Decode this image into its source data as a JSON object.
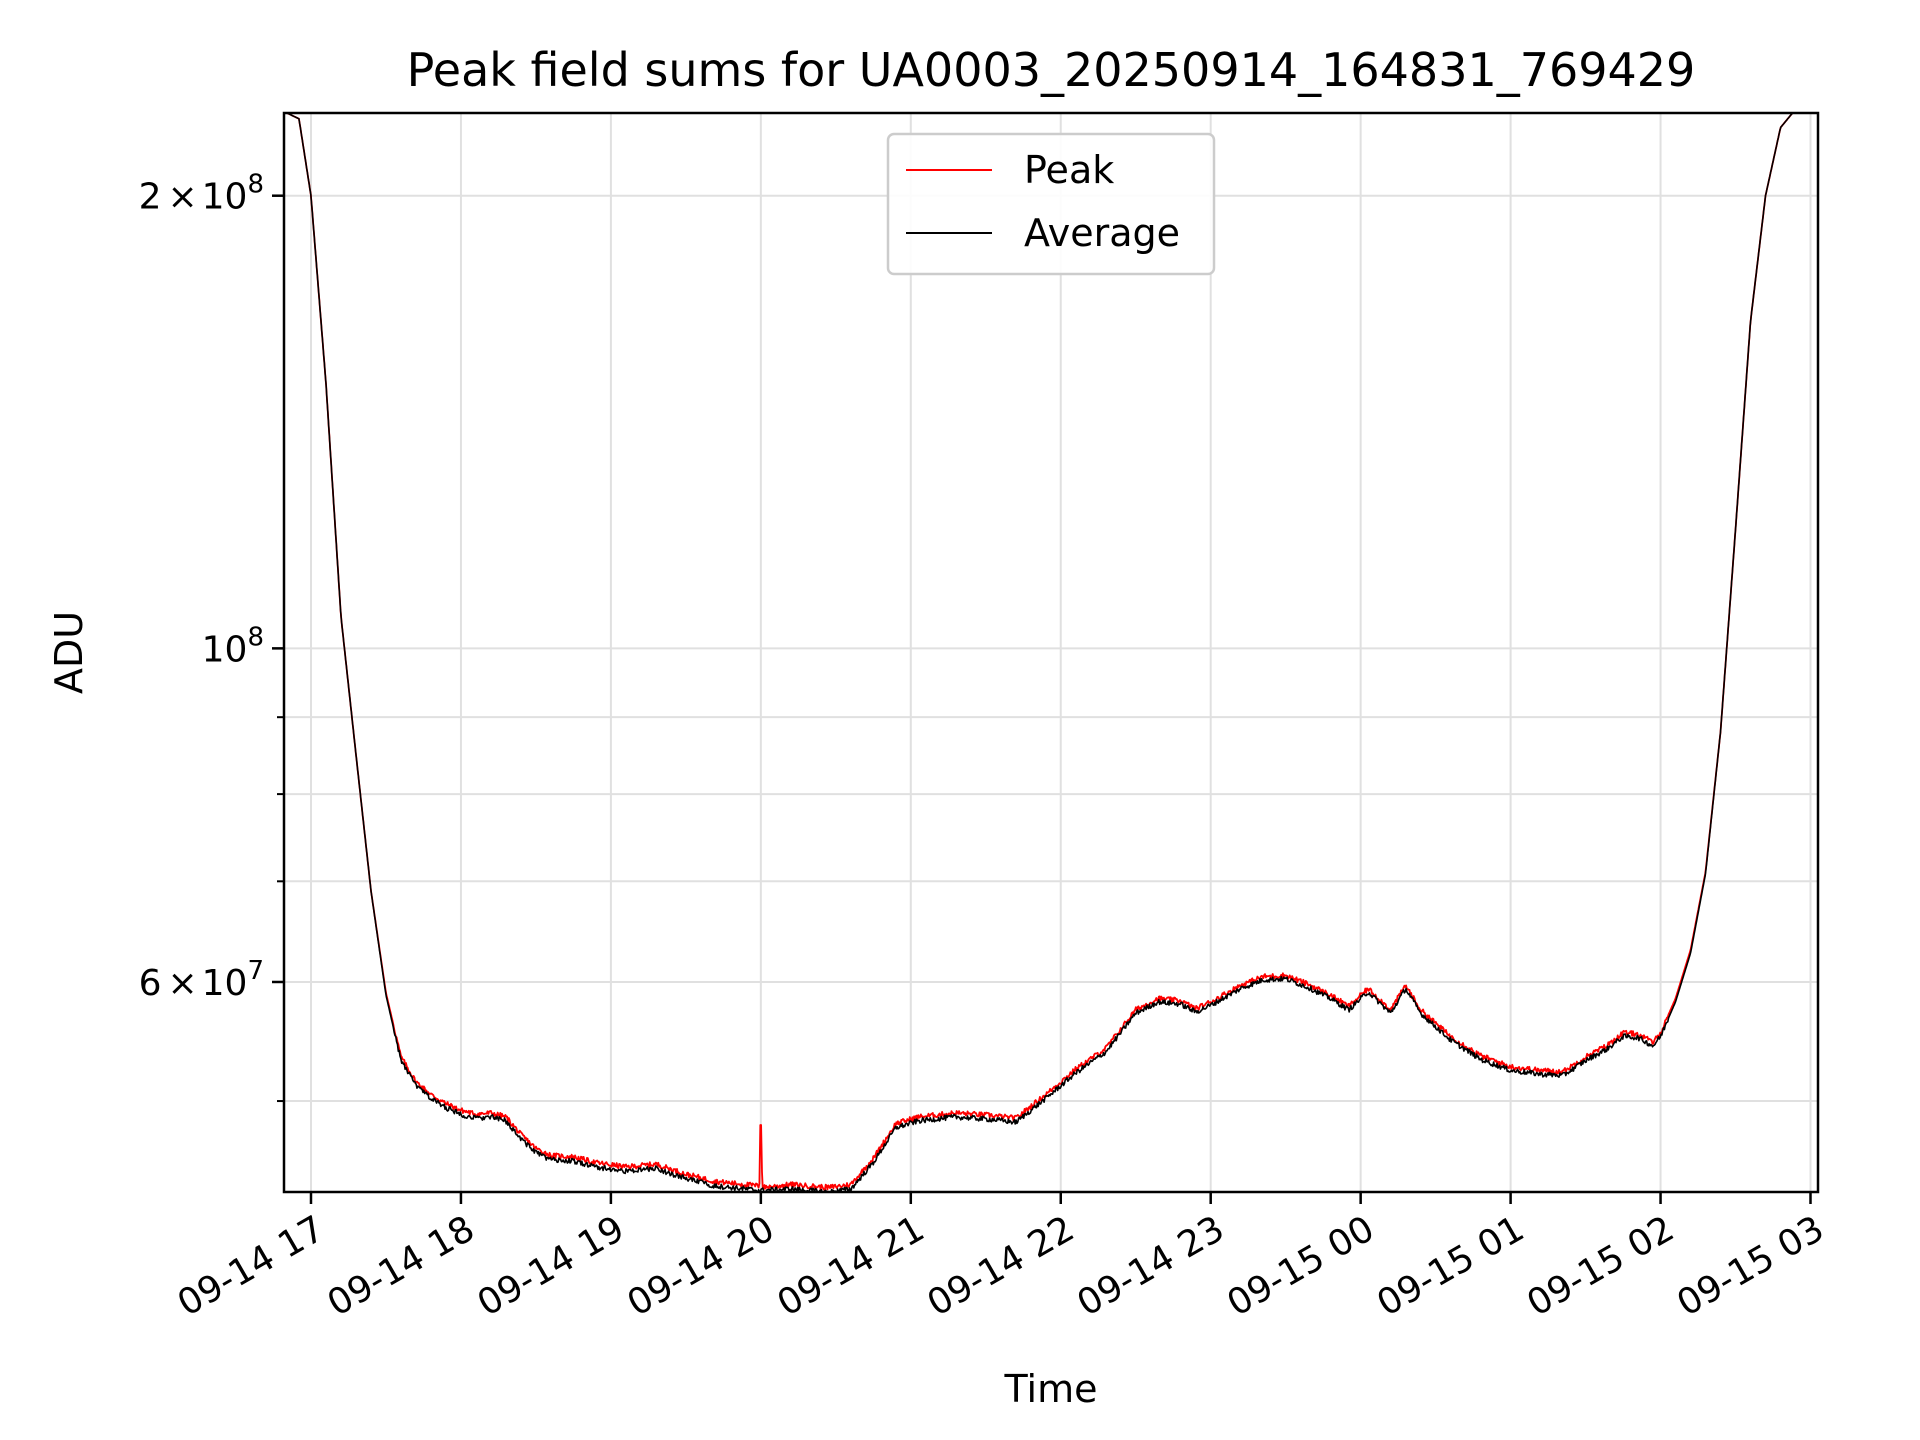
{
  "chart_data": {
    "type": "line",
    "title": "Peak field sums for UA0003_20250914_164831_769429",
    "xlabel": "Time",
    "ylabel": "ADU",
    "yscale": "log",
    "ylim": [
      43500000,
      227000000
    ],
    "xlim_hours": [
      16.82,
      27.05
    ],
    "grid": true,
    "legend_position": "upper center",
    "x_ticks": [
      {
        "label": "09-14 17",
        "hour": 17
      },
      {
        "label": "09-14 18",
        "hour": 18
      },
      {
        "label": "09-14 19",
        "hour": 19
      },
      {
        "label": "09-14 20",
        "hour": 20
      },
      {
        "label": "09-14 21",
        "hour": 21
      },
      {
        "label": "09-14 22",
        "hour": 22
      },
      {
        "label": "09-14 23",
        "hour": 23
      },
      {
        "label": "09-15 00",
        "hour": 24
      },
      {
        "label": "09-15 01",
        "hour": 25
      },
      {
        "label": "09-15 02",
        "hour": 26
      },
      {
        "label": "09-15 03",
        "hour": 27
      }
    ],
    "y_major_ticks": [
      {
        "label_mant": "2",
        "label_exp": "8",
        "value": 200000000,
        "style": "mantissa"
      },
      {
        "label_mant": "10",
        "label_exp": "8",
        "value": 100000000,
        "style": "power"
      },
      {
        "label_mant": "6",
        "label_exp": "7",
        "value": 60000000,
        "style": "mantissa"
      }
    ],
    "y_minor_ticks": [
      50000000,
      70000000,
      80000000,
      90000000
    ],
    "times_symbol": "×",
    "series": [
      {
        "name": "Peak",
        "color": "#ff0000",
        "points": [
          [
            16.84,
            227000000
          ],
          [
            16.92,
            225000000
          ],
          [
            17.0,
            200000000
          ],
          [
            17.1,
            150000000
          ],
          [
            17.2,
            105000000
          ],
          [
            17.3,
            85000000
          ],
          [
            17.4,
            69000000
          ],
          [
            17.5,
            59000000
          ],
          [
            17.6,
            53500000
          ],
          [
            17.7,
            51500000
          ],
          [
            17.8,
            50500000
          ],
          [
            17.9,
            49800000
          ],
          [
            18.0,
            49300000
          ],
          [
            18.1,
            49000000
          ],
          [
            18.2,
            49100000
          ],
          [
            18.3,
            48800000
          ],
          [
            18.4,
            47500000
          ],
          [
            18.5,
            46500000
          ],
          [
            18.6,
            46000000
          ],
          [
            18.75,
            45900000
          ],
          [
            18.9,
            45500000
          ],
          [
            19.1,
            45200000
          ],
          [
            19.3,
            45400000
          ],
          [
            19.5,
            44700000
          ],
          [
            19.7,
            44200000
          ],
          [
            19.9,
            44000000
          ],
          [
            19.99,
            43900000
          ],
          [
            20.0,
            48200000
          ],
          [
            20.01,
            43800000
          ],
          [
            20.2,
            44000000
          ],
          [
            20.45,
            43800000
          ],
          [
            20.6,
            44000000
          ],
          [
            20.75,
            45800000
          ],
          [
            20.9,
            48300000
          ],
          [
            21.05,
            48800000
          ],
          [
            21.3,
            49100000
          ],
          [
            21.55,
            48900000
          ],
          [
            21.7,
            48700000
          ],
          [
            21.9,
            50500000
          ],
          [
            22.1,
            52500000
          ],
          [
            22.3,
            54200000
          ],
          [
            22.5,
            57500000
          ],
          [
            22.65,
            58500000
          ],
          [
            22.8,
            58300000
          ],
          [
            22.9,
            57600000
          ],
          [
            23.0,
            58200000
          ],
          [
            23.2,
            59700000
          ],
          [
            23.35,
            60500000
          ],
          [
            23.5,
            60600000
          ],
          [
            23.65,
            59800000
          ],
          [
            23.8,
            58800000
          ],
          [
            23.92,
            57800000
          ],
          [
            24.05,
            59400000
          ],
          [
            24.2,
            57500000
          ],
          [
            24.3,
            59700000
          ],
          [
            24.4,
            57500000
          ],
          [
            24.6,
            55200000
          ],
          [
            24.8,
            53600000
          ],
          [
            25.0,
            52700000
          ],
          [
            25.2,
            52400000
          ],
          [
            25.35,
            52300000
          ],
          [
            25.5,
            53500000
          ],
          [
            25.65,
            54500000
          ],
          [
            25.75,
            55500000
          ],
          [
            25.85,
            55400000
          ],
          [
            25.95,
            54700000
          ],
          [
            26.0,
            55500000
          ],
          [
            26.1,
            58500000
          ],
          [
            26.2,
            63000000
          ],
          [
            26.3,
            71000000
          ],
          [
            26.4,
            88000000
          ],
          [
            26.5,
            120000000
          ],
          [
            26.6,
            165000000
          ],
          [
            26.7,
            200000000
          ],
          [
            26.8,
            222000000
          ],
          [
            26.88,
            227000000
          ],
          [
            27.04,
            227000000
          ]
        ]
      },
      {
        "name": "Average",
        "color": "#000000",
        "points": [
          [
            16.84,
            227000000
          ],
          [
            16.92,
            225000000
          ],
          [
            17.0,
            200000000
          ],
          [
            17.1,
            150000000
          ],
          [
            17.2,
            105000000
          ],
          [
            17.3,
            85000000
          ],
          [
            17.4,
            69000000
          ],
          [
            17.5,
            58800000
          ],
          [
            17.6,
            53200000
          ],
          [
            17.7,
            51200000
          ],
          [
            17.8,
            50200000
          ],
          [
            17.9,
            49500000
          ],
          [
            18.0,
            49000000
          ],
          [
            18.1,
            48700000
          ],
          [
            18.2,
            48800000
          ],
          [
            18.3,
            48500000
          ],
          [
            18.4,
            47200000
          ],
          [
            18.5,
            46200000
          ],
          [
            18.6,
            45700000
          ],
          [
            18.75,
            45600000
          ],
          [
            18.9,
            45200000
          ],
          [
            19.1,
            44900000
          ],
          [
            19.3,
            45100000
          ],
          [
            19.5,
            44400000
          ],
          [
            19.7,
            43900000
          ],
          [
            19.9,
            43700000
          ],
          [
            20.0,
            43600000
          ],
          [
            20.2,
            43700000
          ],
          [
            20.45,
            43500000
          ],
          [
            20.6,
            43700000
          ],
          [
            20.75,
            45500000
          ],
          [
            20.9,
            48000000
          ],
          [
            21.05,
            48500000
          ],
          [
            21.3,
            48800000
          ],
          [
            21.55,
            48600000
          ],
          [
            21.7,
            48400000
          ],
          [
            21.9,
            50200000
          ],
          [
            22.1,
            52200000
          ],
          [
            22.3,
            53900000
          ],
          [
            22.5,
            57200000
          ],
          [
            22.65,
            58200000
          ],
          [
            22.8,
            58000000
          ],
          [
            22.9,
            57300000
          ],
          [
            23.0,
            57900000
          ],
          [
            23.2,
            59400000
          ],
          [
            23.35,
            60200000
          ],
          [
            23.5,
            60300000
          ],
          [
            23.65,
            59500000
          ],
          [
            23.8,
            58500000
          ],
          [
            23.92,
            57500000
          ],
          [
            24.05,
            59100000
          ],
          [
            24.2,
            57200000
          ],
          [
            24.3,
            59400000
          ],
          [
            24.4,
            57200000
          ],
          [
            24.6,
            54900000
          ],
          [
            24.8,
            53300000
          ],
          [
            25.0,
            52400000
          ],
          [
            25.2,
            52100000
          ],
          [
            25.35,
            52000000
          ],
          [
            25.5,
            53200000
          ],
          [
            25.65,
            54200000
          ],
          [
            25.75,
            55200000
          ],
          [
            25.85,
            55100000
          ],
          [
            25.95,
            54400000
          ],
          [
            26.0,
            55200000
          ],
          [
            26.1,
            58200000
          ],
          [
            26.2,
            62700000
          ],
          [
            26.3,
            70800000
          ],
          [
            26.4,
            88000000
          ],
          [
            26.5,
            120000000
          ],
          [
            26.6,
            165000000
          ],
          [
            26.7,
            200000000
          ],
          [
            26.8,
            222000000
          ],
          [
            26.88,
            227000000
          ],
          [
            27.04,
            227000000
          ]
        ]
      }
    ]
  }
}
